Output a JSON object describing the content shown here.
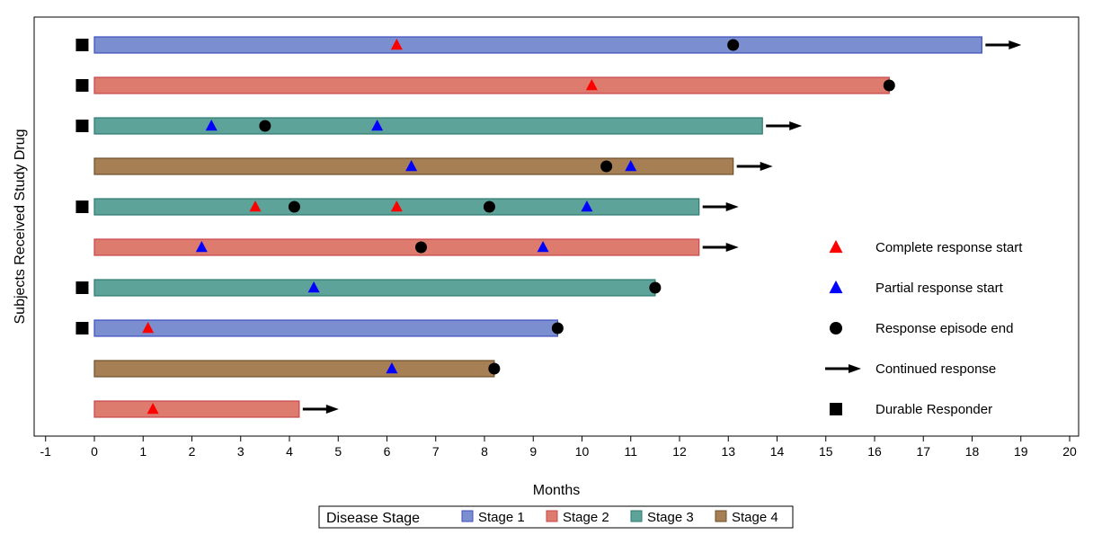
{
  "chart_data": {
    "type": "swimmer",
    "xlabel": "Months",
    "ylabel": "Subjects Received Study Drug",
    "xlim": [
      -1,
      20
    ],
    "xticks": [
      "-1",
      "0",
      "1",
      "2",
      "3",
      "4",
      "5",
      "6",
      "7",
      "8",
      "9",
      "10",
      "11",
      "12",
      "13",
      "14",
      "15",
      "16",
      "17",
      "18",
      "19",
      "20"
    ],
    "stage_colors": {
      "Stage 1": {
        "fill": "#7b8ecf",
        "stroke": "#3f4fbf"
      },
      "Stage 2": {
        "fill": "#dd7b6e",
        "stroke": "#c9474b"
      },
      "Stage 3": {
        "fill": "#5ea39a",
        "stroke": "#2e7a70"
      },
      "Stage 4": {
        "fill": "#a67f55",
        "stroke": "#6e4f2a"
      }
    },
    "subjects": [
      {
        "stage": "Stage 1",
        "end": 18.2,
        "durable": true,
        "continued": true,
        "cr_start": [
          6.2
        ],
        "pr_start": [],
        "resp_end": [
          13.1
        ]
      },
      {
        "stage": "Stage 2",
        "end": 16.3,
        "durable": true,
        "continued": false,
        "cr_start": [
          10.2
        ],
        "pr_start": [],
        "resp_end": [
          16.3
        ]
      },
      {
        "stage": "Stage 3",
        "end": 13.7,
        "durable": true,
        "continued": true,
        "cr_start": [],
        "pr_start": [
          2.4,
          5.8
        ],
        "resp_end": [
          3.5
        ]
      },
      {
        "stage": "Stage 4",
        "end": 13.1,
        "durable": false,
        "continued": true,
        "cr_start": [],
        "pr_start": [
          6.5,
          11.0
        ],
        "resp_end": [
          10.5
        ]
      },
      {
        "stage": "Stage 3",
        "end": 12.4,
        "durable": true,
        "continued": true,
        "cr_start": [
          3.3,
          6.2
        ],
        "pr_start": [
          10.1
        ],
        "resp_end": [
          4.1,
          8.1
        ]
      },
      {
        "stage": "Stage 2",
        "end": 12.4,
        "durable": false,
        "continued": true,
        "cr_start": [],
        "pr_start": [
          2.2,
          9.2
        ],
        "resp_end": [
          6.7
        ]
      },
      {
        "stage": "Stage 3",
        "end": 11.5,
        "durable": true,
        "continued": false,
        "cr_start": [],
        "pr_start": [
          4.5
        ],
        "resp_end": [
          11.5
        ]
      },
      {
        "stage": "Stage 1",
        "end": 9.5,
        "durable": true,
        "continued": false,
        "cr_start": [
          1.1
        ],
        "pr_start": [],
        "resp_end": [
          9.5
        ]
      },
      {
        "stage": "Stage 4",
        "end": 8.2,
        "durable": false,
        "continued": false,
        "cr_start": [],
        "pr_start": [
          6.1
        ],
        "resp_end": [
          8.2
        ]
      },
      {
        "stage": "Stage 2",
        "end": 4.2,
        "durable": false,
        "continued": true,
        "cr_start": [
          1.2
        ],
        "pr_start": [],
        "resp_end": []
      }
    ],
    "marker_legend": [
      {
        "key": "cr",
        "label": "Complete response start",
        "color": "#ff0000"
      },
      {
        "key": "pr",
        "label": "Partial response start",
        "color": "#0000ff"
      },
      {
        "key": "end",
        "label": "Response episode end",
        "color": "#000000"
      },
      {
        "key": "cont",
        "label": "Continued response",
        "color": "#000000"
      },
      {
        "key": "durable",
        "label": "Durable Responder",
        "color": "#000000"
      }
    ],
    "stage_legend": {
      "title": "Disease Stage",
      "items": [
        "Stage 1",
        "Stage 2",
        "Stage 3",
        "Stage 4"
      ]
    }
  }
}
